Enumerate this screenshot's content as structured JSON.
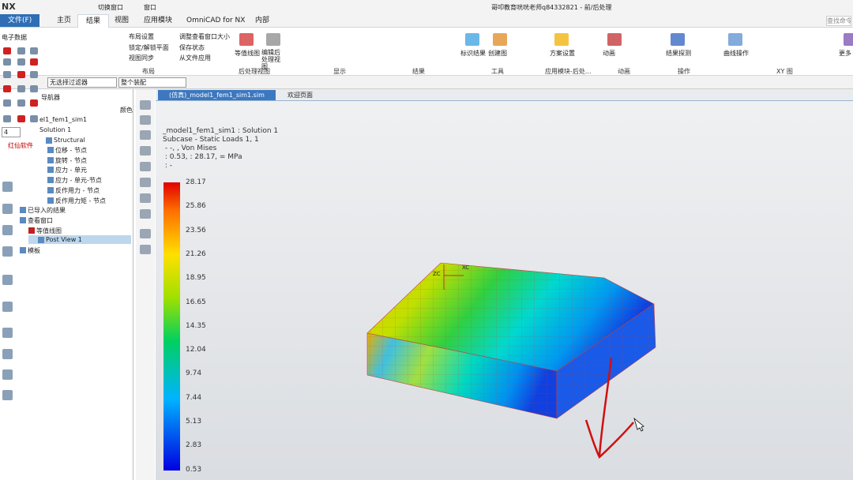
{
  "title_bar": {
    "app": "NX",
    "quick_access": [
      "切换窗口",
      "窗口"
    ],
    "title": "哥叩教育咣咣老师q84332821 - 前/后处理",
    "search": "查找命令"
  },
  "menu_tabs": [
    "文件(F)",
    "主页",
    "结果",
    "视图",
    "应用模块",
    "OmniCAD for NX",
    "内部"
  ],
  "ribbon": {
    "buttons": [
      "电子数据",
      "布局设置",
      "调整查看窗口大小",
      "锁定/解锁平面",
      "保存状态",
      "视图同步",
      "从文件应用",
      "等值线图",
      "编辑后处理视图",
      "标识结果",
      "创建图",
      "方案设置",
      "动画",
      "结果探测",
      "曲线操作",
      "更多"
    ],
    "groups": [
      "布局",
      "后处理视图",
      "显示",
      "结果",
      "工具",
      "应用模块-后处...",
      "动画",
      "操作",
      "XY 图"
    ]
  },
  "filter_bar": [
    "无选择过滤器",
    "整个装配"
  ],
  "navigator": {
    "title": "导航器",
    "column": "颜色",
    "brand": "红仙软件",
    "layer": "4",
    "items": [
      "el1_fem1_sim1",
      "Solution 1",
      "Structural",
      "位移 - 节点",
      "旋转 - 节点",
      "应力 - 单元",
      "应力 - 单元-节点",
      "反作用力 - 节点",
      "反作用力矩 - 节点",
      "已导入的结果",
      "查看窗口",
      "等值线图",
      "Post View 1",
      "模板"
    ]
  },
  "document_tabs": [
    "(仿真)_model1_fem1_sim1.sim",
    "欢迎页面"
  ],
  "viewport": {
    "info_lines": [
      "_model1_fem1_sim1 : Solution 1",
      "Subcase - Static Loads 1, 1",
      " - -, , Von Mises",
      " : 0.53, : 28.17, = MPa",
      " : -"
    ],
    "legend": [
      "28.17",
      "25.86",
      "23.56",
      "21.26",
      "18.95",
      "16.65",
      "14.35",
      "12.04",
      "9.74",
      "7.44",
      "5.13",
      "2.83",
      "0.53"
    ],
    "axes": [
      "ZC",
      "XC"
    ]
  }
}
